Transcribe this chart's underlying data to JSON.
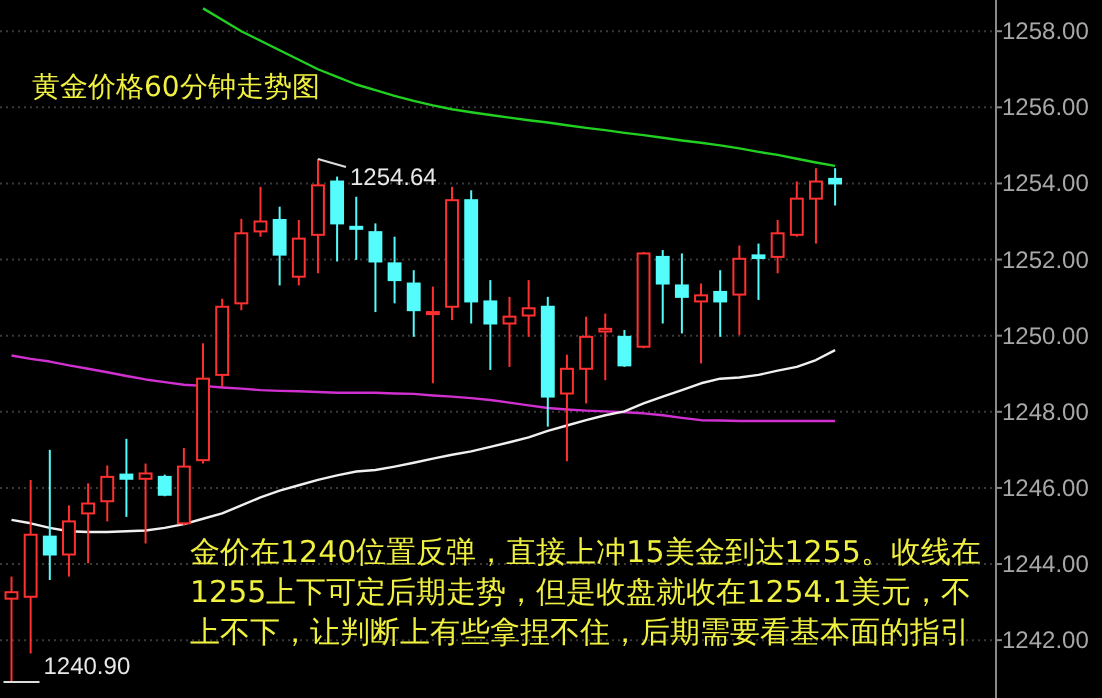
{
  "chart_data": {
    "type": "candlestick",
    "title": "黄金价格60分钟走势图",
    "categories": [
      null,
      null,
      null,
      null,
      null,
      null,
      null,
      null,
      null,
      null,
      null,
      null,
      null,
      null,
      null,
      null,
      null,
      null,
      null,
      null,
      null,
      null,
      null,
      null,
      null,
      null,
      null,
      null,
      null,
      null,
      null,
      null,
      null,
      null,
      null,
      null,
      null,
      null,
      null,
      null,
      null,
      null,
      null,
      null
    ],
    "ohlc": [
      [
        1243.09,
        1243.67,
        1240.9,
        1243.26
      ],
      [
        1243.14,
        1246.21,
        1241.65,
        1244.77
      ],
      [
        1244.72,
        1247.0,
        1243.58,
        1244.25
      ],
      [
        1244.25,
        1245.54,
        1243.67,
        1245.12
      ],
      [
        1245.33,
        1246.12,
        1244.02,
        1245.59
      ],
      [
        1245.65,
        1246.59,
        1245.12,
        1246.29
      ],
      [
        1246.35,
        1247.29,
        1245.24,
        1246.24
      ],
      [
        1246.24,
        1246.64,
        1244.54,
        1246.38
      ],
      [
        1246.29,
        1246.35,
        1245.78,
        1245.82
      ],
      [
        1245.07,
        1247.05,
        1245.02,
        1246.56
      ],
      [
        1246.73,
        1249.8,
        1246.64,
        1248.87
      ],
      [
        1248.97,
        1250.97,
        1248.66,
        1250.76
      ],
      [
        1250.85,
        1253.07,
        1250.67,
        1252.69
      ],
      [
        1252.74,
        1253.91,
        1252.6,
        1253.0
      ],
      [
        1253.04,
        1253.39,
        1251.32,
        1252.13
      ],
      [
        1251.55,
        1253.04,
        1251.32,
        1252.55
      ],
      [
        1252.65,
        1254.64,
        1251.64,
        1253.95
      ],
      [
        1254.05,
        1254.18,
        1251.95,
        1252.95
      ],
      [
        1252.86,
        1253.65,
        1251.99,
        1252.83
      ],
      [
        1252.72,
        1252.95,
        1250.62,
        1251.95
      ],
      [
        1251.9,
        1252.6,
        1250.85,
        1251.46
      ],
      [
        1251.37,
        1251.72,
        1249.97,
        1250.67
      ],
      [
        1250.58,
        1251.29,
        1248.75,
        1250.62
      ],
      [
        1250.76,
        1253.91,
        1250.41,
        1253.56
      ],
      [
        1253.56,
        1253.82,
        1250.32,
        1250.9
      ],
      [
        1250.9,
        1251.46,
        1249.1,
        1250.32
      ],
      [
        1250.32,
        1251.02,
        1249.18,
        1250.5
      ],
      [
        1250.53,
        1251.46,
        1249.97,
        1250.72
      ],
      [
        1250.76,
        1251.02,
        1247.61,
        1248.4
      ],
      [
        1248.48,
        1249.5,
        1246.7,
        1249.13
      ],
      [
        1249.13,
        1250.5,
        1248.22,
        1249.97
      ],
      [
        1250.11,
        1250.58,
        1248.83,
        1250.18
      ],
      [
        1249.97,
        1250.15,
        1249.18,
        1249.22
      ],
      [
        1249.71,
        1252.2,
        1249.67,
        1252.16
      ],
      [
        1252.07,
        1252.25,
        1250.32,
        1251.37
      ],
      [
        1251.32,
        1252.16,
        1250.06,
        1251.02
      ],
      [
        1250.9,
        1251.37,
        1249.27,
        1251.06
      ],
      [
        1251.15,
        1251.72,
        1249.97,
        1250.9
      ],
      [
        1251.08,
        1252.37,
        1250.02,
        1252.02
      ],
      [
        1252.11,
        1252.42,
        1250.94,
        1252.04
      ],
      [
        1252.07,
        1253.04,
        1251.64,
        1252.69
      ],
      [
        1252.65,
        1254.05,
        1252.6,
        1253.6
      ],
      [
        1253.6,
        1254.4,
        1252.42,
        1254.05
      ],
      [
        1254.12,
        1254.4,
        1253.42,
        1254.0
      ]
    ],
    "colors": [
      "#ff3030",
      "#ff3030",
      "#54fcfc",
      "#ff3030",
      "#ff3030",
      "#ff3030",
      "#54fcfc",
      "#ff3030",
      "#54fcfc",
      "#ff3030",
      "#ff3030",
      "#ff3030",
      "#ff3030",
      "#ff3030",
      "#54fcfc",
      "#ff3030",
      "#ff3030",
      "#54fcfc",
      "#54fcfc",
      "#54fcfc",
      "#54fcfc",
      "#54fcfc",
      "#ff3030",
      "#ff3030",
      "#54fcfc",
      "#54fcfc",
      "#ff3030",
      "#ff3030",
      "#54fcfc",
      "#ff3030",
      "#ff3030",
      "#ff3030",
      "#54fcfc",
      "#ff3030",
      "#54fcfc",
      "#54fcfc",
      "#ff3030",
      "#54fcfc",
      "#ff3030",
      "#54fcfc",
      "#ff3030",
      "#ff3030",
      "#ff3030",
      "#54fcfc"
    ],
    "series": [
      {
        "type": "line",
        "color": "#22d022",
        "values": [
          null,
          null,
          null,
          null,
          null,
          null,
          null,
          null,
          null,
          null,
          1258.6,
          1258.3,
          1258.0,
          1257.75,
          1257.5,
          1257.25,
          1257.0,
          1256.8,
          1256.6,
          1256.45,
          1256.3,
          1256.17,
          1256.05,
          1255.95,
          1255.87,
          1255.8,
          1255.73,
          1255.66,
          1255.6,
          1255.53,
          1255.46,
          1255.4,
          1255.33,
          1255.27,
          1255.2,
          1255.13,
          1255.07,
          1255.0,
          1254.92,
          1254.83,
          1254.75,
          1254.65,
          1254.55,
          1254.46
        ]
      },
      {
        "type": "line",
        "color": "#d030d0",
        "values": [
          1249.48,
          1249.39,
          1249.32,
          1249.22,
          1249.13,
          1249.04,
          1248.94,
          1248.85,
          1248.78,
          1248.71,
          1248.68,
          1248.64,
          1248.61,
          1248.57,
          1248.55,
          1248.54,
          1248.52,
          1248.5,
          1248.5,
          1248.5,
          1248.48,
          1248.47,
          1248.43,
          1248.4,
          1248.36,
          1248.31,
          1248.24,
          1248.17,
          1248.1,
          1248.06,
          1248.03,
          1248.01,
          1247.99,
          1247.96,
          1247.91,
          1247.84,
          1247.78,
          1247.77,
          1247.76,
          1247.76,
          1247.76,
          1247.76,
          1247.76,
          1247.76
        ]
      },
      {
        "type": "line",
        "color": "#f0f0f0",
        "values": [
          1245.16,
          1245.07,
          1244.95,
          1244.86,
          1244.84,
          1244.84,
          1244.86,
          1244.88,
          1244.95,
          1245.05,
          1245.19,
          1245.33,
          1245.54,
          1245.75,
          1245.93,
          1246.07,
          1246.21,
          1246.33,
          1246.43,
          1246.47,
          1246.56,
          1246.66,
          1246.77,
          1246.87,
          1246.96,
          1247.08,
          1247.2,
          1247.33,
          1247.5,
          1247.64,
          1247.78,
          1247.91,
          1248.01,
          1248.22,
          1248.4,
          1248.57,
          1248.75,
          1248.87,
          1248.9,
          1248.97,
          1249.08,
          1249.18,
          1249.36,
          1249.62
        ]
      }
    ],
    "ylim": [
      1240.48,
      1258.82
    ],
    "yticks": [
      {
        "value": 1242,
        "label": "1242.00"
      },
      {
        "value": 1244,
        "label": "1244.00"
      },
      {
        "value": 1246,
        "label": "1246.00"
      },
      {
        "value": 1248,
        "label": "1248.00"
      },
      {
        "value": 1250,
        "label": "1250.00"
      },
      {
        "value": 1252,
        "label": "1252.00"
      },
      {
        "value": 1254,
        "label": "1254.00"
      },
      {
        "value": 1256,
        "label": "1256.00"
      },
      {
        "value": 1258,
        "label": "1258.00"
      }
    ],
    "grid": "y",
    "tick_labels": "y",
    "annotations": [
      "1254.64",
      "1240.90",
      "金价在1240位置反弹，直接上冲15美金到达1255。收线在1255上下可定后期走势，但是收盘就收在1254.1美元，不上不下，让判断上有些拿捏不住，后期需要看基本面的指引"
    ]
  }
}
